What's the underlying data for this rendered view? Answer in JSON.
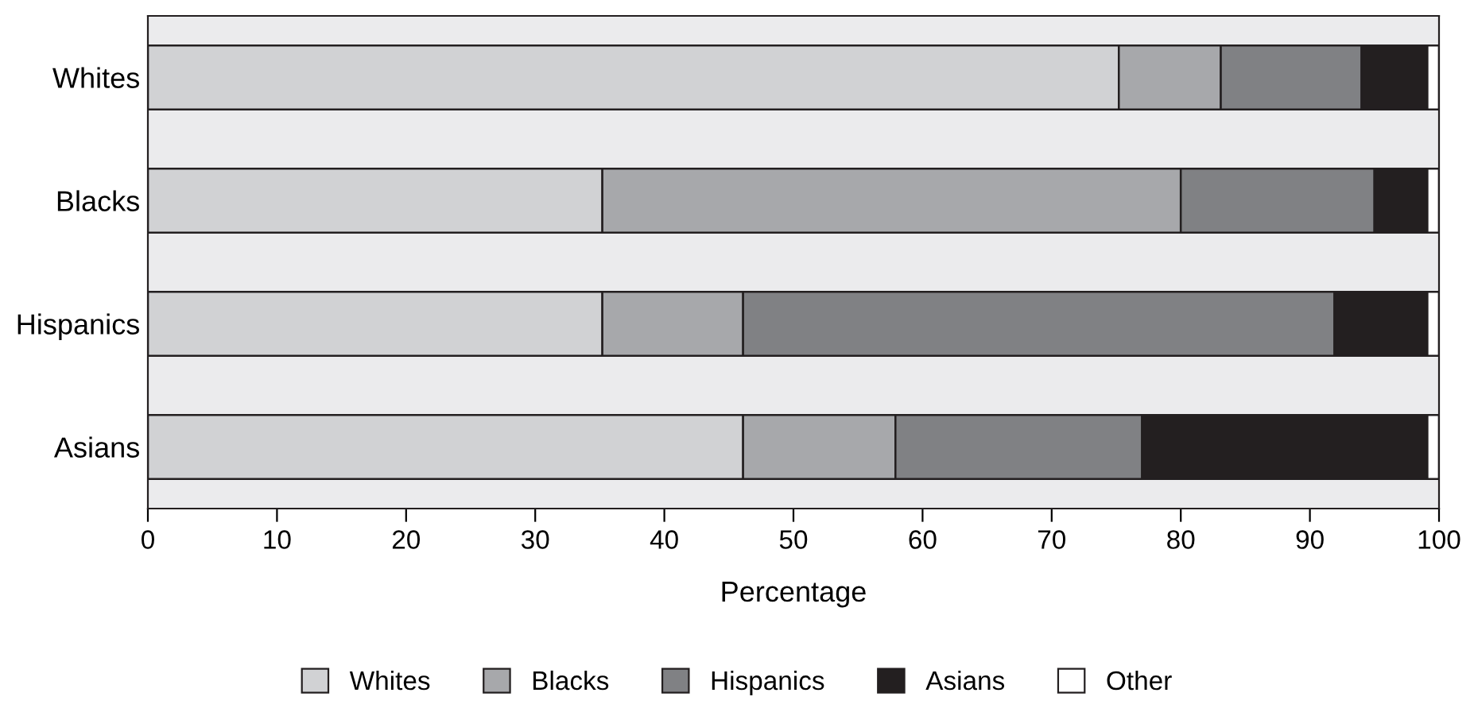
{
  "chart_data": {
    "type": "bar",
    "orientation": "horizontal",
    "stacked": true,
    "xlabel": "Percentage",
    "categories": [
      "Whites",
      "Blacks",
      "Hispanics",
      "Asians"
    ],
    "series": [
      {
        "name": "Whites",
        "color": "#d1d2d4",
        "values": [
          75.2,
          35.2,
          35.2,
          46.1
        ]
      },
      {
        "name": "Blacks",
        "color": "#a7a8ab",
        "values": [
          7.9,
          44.8,
          10.9,
          11.8
        ]
      },
      {
        "name": "Hispanics",
        "color": "#808184",
        "values": [
          10.9,
          15.0,
          45.8,
          19.1
        ]
      },
      {
        "name": "Asians",
        "color": "#231f20",
        "values": [
          5.1,
          4.1,
          7.2,
          22.1
        ]
      },
      {
        "name": "Other",
        "color": "#ffffff",
        "values": [
          0.9,
          0.9,
          0.9,
          0.9
        ]
      }
    ],
    "xlim": [
      0,
      100
    ],
    "xticks": [
      0,
      10,
      20,
      30,
      40,
      50,
      60,
      70,
      80,
      90,
      100
    ],
    "legend": "bottom",
    "grid": false
  }
}
